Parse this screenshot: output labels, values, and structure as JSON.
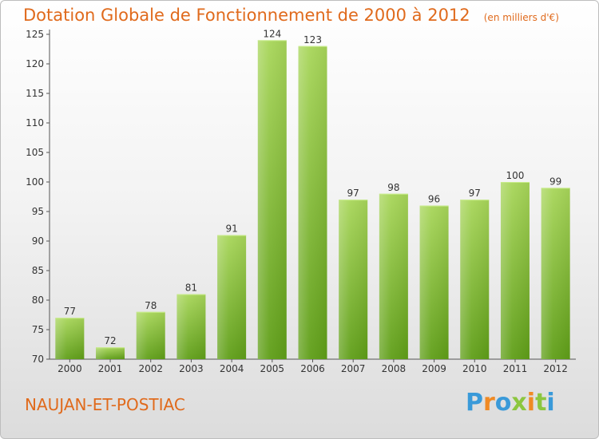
{
  "colors": {
    "title": "#e06a1c",
    "bar_top": "#a8d65a",
    "bar_bottom": "#5f9e18",
    "logo": [
      "#3a9ad9",
      "#f08a24",
      "#3a9ad9",
      "#8cc63f",
      "#f08a24",
      "#8cc63f"
    ]
  },
  "chart_data": {
    "type": "bar",
    "title": "Dotation Globale de Fonctionnement de 2000 à 2012",
    "subtitle": "(en milliers d'€)",
    "categories": [
      "2000",
      "2001",
      "2002",
      "2003",
      "2004",
      "2005",
      "2006",
      "2007",
      "2008",
      "2009",
      "2010",
      "2011",
      "2012"
    ],
    "values": [
      77,
      72,
      78,
      81,
      91,
      124,
      123,
      97,
      98,
      96,
      97,
      100,
      99
    ],
    "ylim": [
      70,
      125
    ],
    "yticks": [
      70,
      75,
      80,
      85,
      90,
      95,
      100,
      105,
      110,
      115,
      120,
      125
    ],
    "grid": false,
    "legend": "none"
  },
  "footer": {
    "commune": "NAUJAN-ET-POSTIAC",
    "logo_letters": [
      "P",
      "r",
      "o",
      "x",
      "i",
      "t",
      "i"
    ]
  }
}
